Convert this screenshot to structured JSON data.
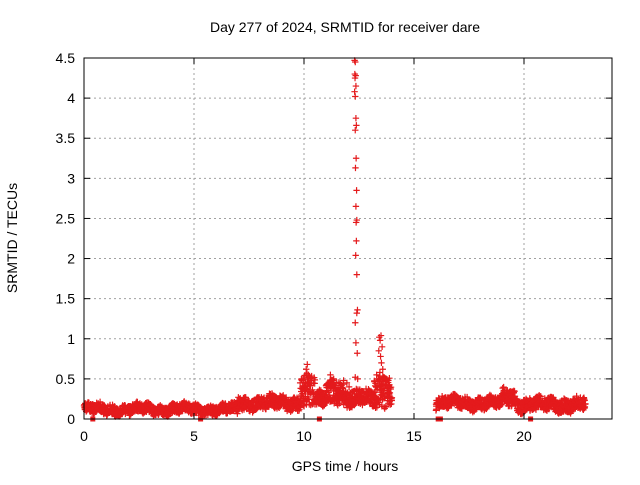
{
  "chart_data": {
    "type": "scatter",
    "title": "Day 277 of 2024, SRMTID for receiver dare",
    "xlabel": "GPS time / hours",
    "ylabel": "SRMTID / TECUs",
    "xlim": [
      0,
      24
    ],
    "ylim": [
      0,
      4.5
    ],
    "x_ticks": [
      0,
      5,
      10,
      15,
      20
    ],
    "x_tick_labels": [
      "0",
      "5",
      "10",
      "15",
      "20"
    ],
    "y_ticks": [
      0,
      0.5,
      1,
      1.5,
      2,
      2.5,
      3,
      3.5,
      4,
      4.5
    ],
    "y_tick_labels": [
      "0",
      "0.5",
      "1",
      "1.5",
      "2",
      "2.5",
      "3",
      "3.5",
      "4",
      "4.5"
    ],
    "grid": true,
    "marker": "+",
    "color": "#e41a1c",
    "baseline_segments": [
      {
        "x_start": 0.0,
        "x_end": 7.0,
        "level": 0.12,
        "spread": 0.06
      },
      {
        "x_start": 7.0,
        "x_end": 9.8,
        "level": 0.2,
        "spread": 0.08
      },
      {
        "x_start": 9.8,
        "x_end": 10.5,
        "level": 0.35,
        "spread": 0.2
      },
      {
        "x_start": 10.5,
        "x_end": 11.0,
        "level": 0.22,
        "spread": 0.1
      },
      {
        "x_start": 11.0,
        "x_end": 11.8,
        "level": 0.35,
        "spread": 0.15
      },
      {
        "x_start": 11.8,
        "x_end": 13.2,
        "level": 0.25,
        "spread": 0.1
      },
      {
        "x_start": 13.2,
        "x_end": 14.0,
        "level": 0.35,
        "spread": 0.2
      },
      {
        "x_start": 16.0,
        "x_end": 19.0,
        "level": 0.2,
        "spread": 0.07
      },
      {
        "x_start": 19.0,
        "x_end": 19.6,
        "level": 0.28,
        "spread": 0.1
      },
      {
        "x_start": 19.6,
        "x_end": 22.8,
        "level": 0.18,
        "spread": 0.08
      }
    ],
    "spike_points": [
      {
        "x": 12.3,
        "y": 4.47
      },
      {
        "x": 12.33,
        "y": 4.45
      },
      {
        "x": 12.31,
        "y": 4.3
      },
      {
        "x": 12.35,
        "y": 4.28
      },
      {
        "x": 12.32,
        "y": 4.25
      },
      {
        "x": 12.36,
        "y": 4.15
      },
      {
        "x": 12.3,
        "y": 4.08
      },
      {
        "x": 12.33,
        "y": 4.02
      },
      {
        "x": 12.36,
        "y": 3.75
      },
      {
        "x": 12.38,
        "y": 3.66
      },
      {
        "x": 12.33,
        "y": 3.6
      },
      {
        "x": 12.37,
        "y": 3.25
      },
      {
        "x": 12.34,
        "y": 3.13
      },
      {
        "x": 12.39,
        "y": 2.85
      },
      {
        "x": 12.36,
        "y": 2.65
      },
      {
        "x": 12.4,
        "y": 2.48
      },
      {
        "x": 12.37,
        "y": 2.45
      },
      {
        "x": 12.38,
        "y": 2.22
      },
      {
        "x": 12.35,
        "y": 2.04
      },
      {
        "x": 12.4,
        "y": 1.8
      },
      {
        "x": 12.43,
        "y": 1.36
      },
      {
        "x": 12.4,
        "y": 1.32
      },
      {
        "x": 12.33,
        "y": 1.2
      },
      {
        "x": 12.36,
        "y": 0.95
      },
      {
        "x": 12.42,
        "y": 0.82
      },
      {
        "x": 12.33,
        "y": 0.52
      },
      {
        "x": 12.44,
        "y": 0.5
      },
      {
        "x": 13.5,
        "y": 1.04
      },
      {
        "x": 13.42,
        "y": 1.02
      },
      {
        "x": 13.46,
        "y": 0.98
      },
      {
        "x": 13.55,
        "y": 0.9
      },
      {
        "x": 13.4,
        "y": 0.85
      },
      {
        "x": 13.48,
        "y": 0.78
      },
      {
        "x": 13.52,
        "y": 0.7
      },
      {
        "x": 13.58,
        "y": 0.62
      },
      {
        "x": 13.45,
        "y": 0.58
      },
      {
        "x": 13.3,
        "y": 0.55
      },
      {
        "x": 13.62,
        "y": 0.52
      },
      {
        "x": 13.38,
        "y": 0.5
      },
      {
        "x": 10.15,
        "y": 0.68
      },
      {
        "x": 10.1,
        "y": 0.62
      },
      {
        "x": 10.2,
        "y": 0.55
      },
      {
        "x": 9.9,
        "y": 0.5
      },
      {
        "x": 11.2,
        "y": 0.55
      },
      {
        "x": 11.35,
        "y": 0.5
      },
      {
        "x": 11.8,
        "y": 0.48
      },
      {
        "x": 11.95,
        "y": 0.45
      },
      {
        "x": 12.05,
        "y": 0.4
      }
    ],
    "zero_flags": [
      0.4,
      5.3,
      10.7,
      16.1,
      16.2,
      20.3
    ]
  }
}
